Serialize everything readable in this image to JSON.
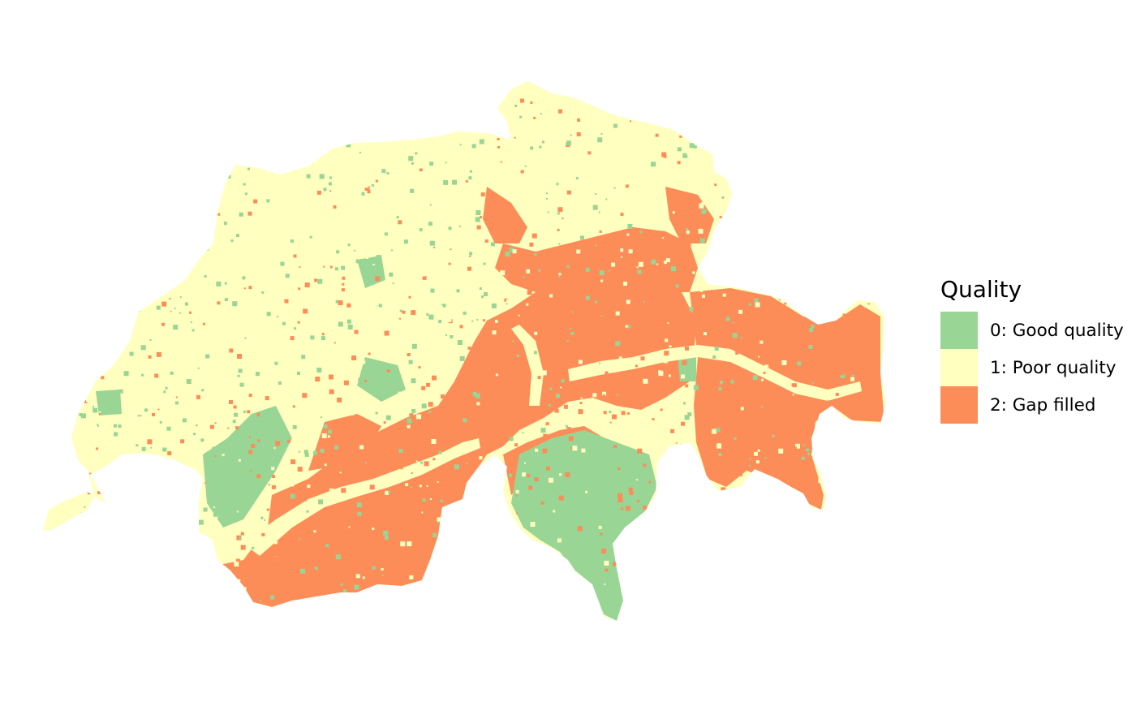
{
  "map": {
    "region": "Switzerland",
    "layer": "Quality"
  },
  "legend": {
    "title": "Quality",
    "items": [
      {
        "label": "0: Good quality",
        "color": "#99D594"
      },
      {
        "label": "1: Poor quality",
        "color": "#FFFFBF"
      },
      {
        "label": "2: Gap filled",
        "color": "#FC8D59"
      }
    ]
  },
  "colors": {
    "good": "#99D594",
    "poor": "#FFFFBF",
    "gap": "#FC8D59",
    "background": "#FFFFFF"
  }
}
